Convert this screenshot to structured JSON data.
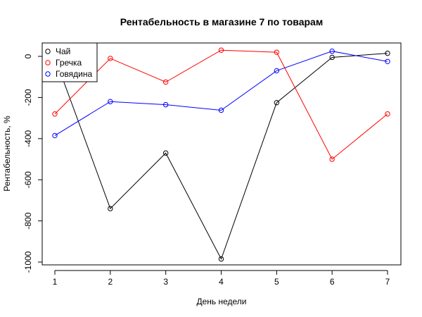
{
  "chart_data": {
    "type": "line",
    "title": "Рентабельность в магазине 7 по товарам",
    "xlabel": "День недели",
    "ylabel": "Рентабельность, %",
    "x": [
      1,
      2,
      3,
      4,
      5,
      6,
      7
    ],
    "xlim": [
      1,
      7
    ],
    "ylim": [
      -1000,
      0
    ],
    "x_ticks": [
      "1",
      "2",
      "3",
      "4",
      "5",
      "6",
      "7"
    ],
    "y_ticks": [
      0,
      -200,
      -400,
      -600,
      -800,
      -1000
    ],
    "y_tick_labels": [
      "0",
      "-200",
      "-400",
      "-600",
      "-800",
      "-1000"
    ],
    "grid": false,
    "legend_position": "top-left",
    "series": [
      {
        "name": "Чай",
        "color": "#000000",
        "values": [
          -5,
          -740,
          -470,
          -985,
          -225,
          -5,
          15
        ]
      },
      {
        "name": "Гречка",
        "color": "#ff0000",
        "values": [
          -280,
          -10,
          -125,
          30,
          20,
          -500,
          -280
        ]
      },
      {
        "name": "Говядина",
        "color": "#0000ff",
        "values": [
          -385,
          -220,
          -235,
          -262,
          -70,
          25,
          -25
        ]
      }
    ]
  }
}
